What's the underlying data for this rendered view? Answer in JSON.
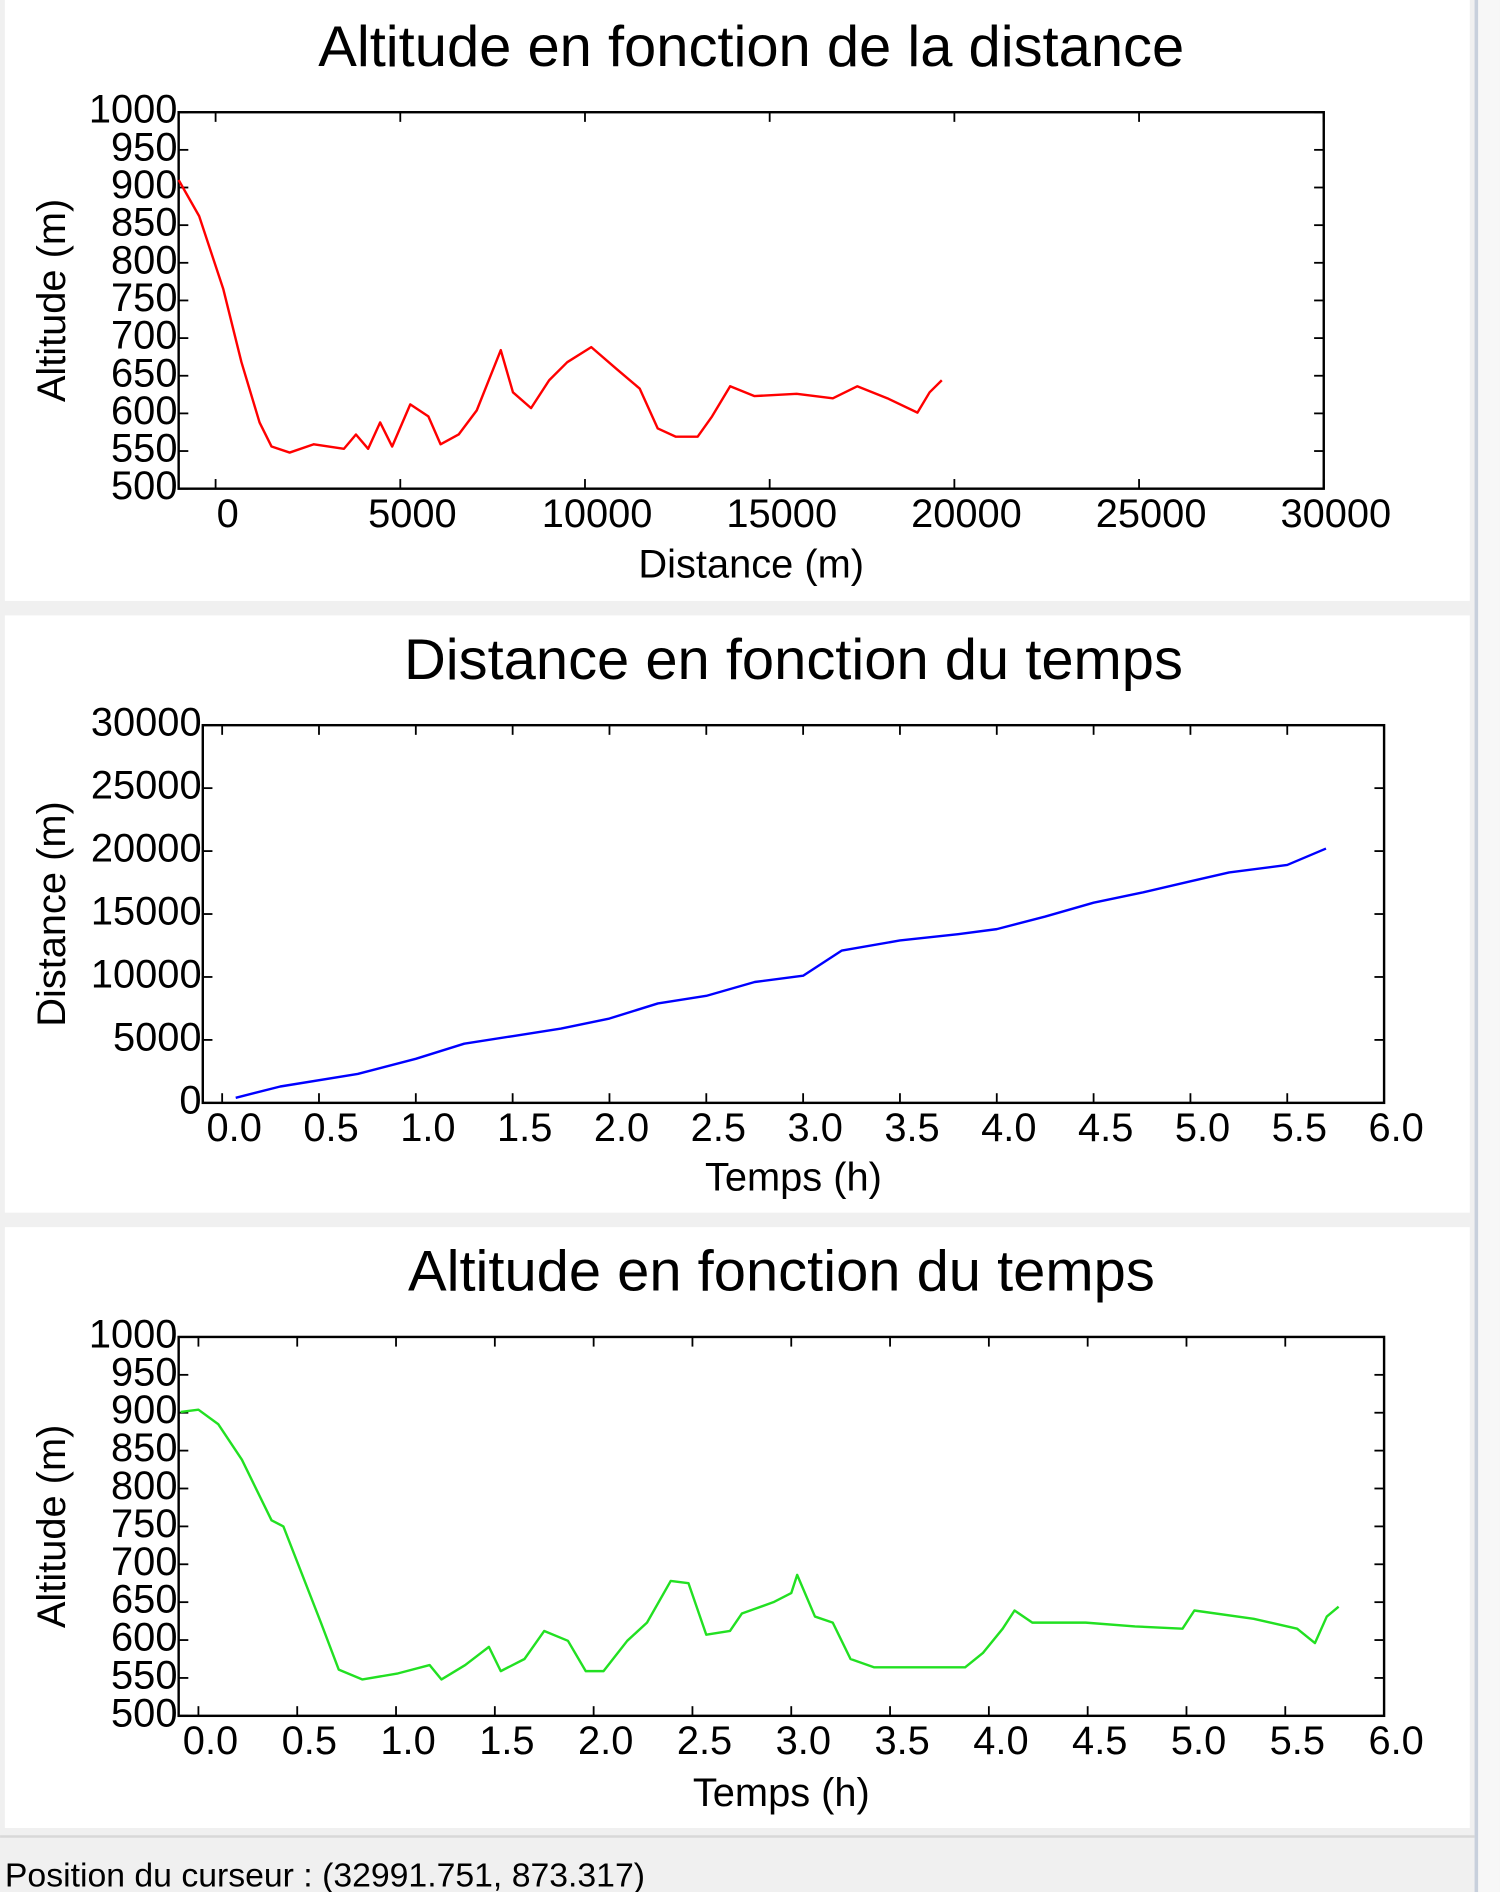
{
  "chart_data": [
    {
      "type": "line",
      "title": "Altitude en fonction de la distance",
      "xlabel": "Distance (m)",
      "ylabel": "Altitude (m)",
      "xlim": [
        -1000,
        30000
      ],
      "ylim": [
        500,
        1000
      ],
      "xticks": [
        0,
        5000,
        10000,
        15000,
        20000,
        25000,
        30000
      ],
      "yticks": [
        500,
        550,
        600,
        650,
        700,
        750,
        800,
        850,
        900,
        950,
        1000
      ],
      "series": [
        {
          "color": "#ff0000",
          "x": [
            -1000,
            -445,
            209,
            700,
            1190,
            1515,
            2005,
            2660,
            3475,
            3800,
            4130,
            4455,
            4780,
            5270,
            5760,
            6090,
            6580,
            7070,
            7720,
            8050,
            8540,
            9030,
            9520,
            10170,
            10830,
            11480,
            11970,
            12460,
            13050,
            13440,
            13930,
            14590,
            15730,
            16710,
            17370,
            18190,
            19000,
            19330,
            19660
          ],
          "values": [
            910,
            862,
            765,
            668,
            588,
            556,
            548,
            559,
            553,
            572,
            553,
            588,
            556,
            612,
            596,
            559,
            572,
            604,
            684,
            628,
            607,
            644,
            668,
            688,
            660,
            633,
            580,
            569,
            569,
            596,
            636,
            623,
            626,
            620,
            636,
            620,
            601,
            628,
            644
          ]
        }
      ]
    },
    {
      "type": "line",
      "title": "Distance en fonction du temps",
      "xlabel": "Temps (h)",
      "ylabel": "Distance (m)",
      "xlim": [
        -0.1,
        6.0
      ],
      "ylim": [
        0,
        30000
      ],
      "xticks": [
        {
          "value": 0,
          "label": "0.0"
        },
        0.5,
        {
          "value": 1,
          "label": "1.0"
        },
        1.5,
        {
          "value": 2,
          "label": "2.0"
        },
        2.5,
        {
          "value": 3,
          "label": "3.0"
        },
        3.5,
        {
          "value": 4,
          "label": "4.0"
        },
        4.5,
        {
          "value": 5,
          "label": "5.0"
        },
        5.5,
        {
          "value": 6,
          "label": "6.0"
        }
      ],
      "yticks": [
        0,
        5000,
        10000,
        15000,
        20000,
        25000,
        30000
      ],
      "series": [
        {
          "color": "#0000ff",
          "x": [
            0.07,
            0.3,
            0.7,
            1.0,
            1.25,
            1.5,
            1.75,
            2.0,
            2.25,
            2.5,
            2.75,
            3.0,
            3.2,
            3.5,
            3.8,
            4.0,
            4.25,
            4.5,
            4.75,
            5.0,
            5.2,
            5.5,
            5.7
          ],
          "values": [
            400,
            1300,
            2300,
            3500,
            4700,
            5300,
            5900,
            6700,
            7900,
            8500,
            9600,
            10100,
            12100,
            12900,
            13400,
            13800,
            14800,
            15900,
            16700,
            17600,
            18300,
            18900,
            20200
          ]
        }
      ]
    },
    {
      "type": "line",
      "title": "Altitude en fonction du temps",
      "xlabel": "Temps (h)",
      "ylabel": "Altitude (m)",
      "xlim": [
        -0.1,
        6.0
      ],
      "ylim": [
        500,
        1000
      ],
      "xticks": [
        {
          "value": 0,
          "label": "0.0"
        },
        0.5,
        {
          "value": 1,
          "label": "1.0"
        },
        1.5,
        {
          "value": 2,
          "label": "2.0"
        },
        2.5,
        {
          "value": 3,
          "label": "3.0"
        },
        3.5,
        {
          "value": 4,
          "label": "4.0"
        },
        4.5,
        {
          "value": 5,
          "label": "5.0"
        },
        5.5,
        {
          "value": 6,
          "label": "6.0"
        }
      ],
      "yticks": [
        500,
        550,
        600,
        650,
        700,
        750,
        800,
        850,
        900,
        950,
        1000
      ],
      "series": [
        {
          "color": "#22e022",
          "x": [
            -0.09,
            0.0,
            0.1,
            0.22,
            0.37,
            0.43,
            0.62,
            0.71,
            0.83,
            1.01,
            1.17,
            1.23,
            1.35,
            1.47,
            1.53,
            1.65,
            1.75,
            1.87,
            1.96,
            2.05,
            2.17,
            2.27,
            2.39,
            2.48,
            2.57,
            2.69,
            2.75,
            2.91,
            3.0,
            3.03,
            3.12,
            3.21,
            3.3,
            3.42,
            3.88,
            3.97,
            4.07,
            4.13,
            4.22,
            4.49,
            4.74,
            4.98,
            5.04,
            5.34,
            5.56,
            5.65,
            5.71,
            5.77
          ],
          "values": [
            901,
            904,
            885,
            838,
            758,
            750,
            623,
            561,
            548,
            556,
            567,
            548,
            567,
            591,
            559,
            575,
            612,
            599,
            559,
            559,
            599,
            623,
            678,
            675,
            607,
            612,
            635,
            650,
            662,
            686,
            631,
            623,
            575,
            564,
            564,
            583,
            615,
            639,
            623,
            623,
            618,
            615,
            639,
            628,
            615,
            596,
            631,
            644
          ]
        }
      ]
    }
  ],
  "status_bar": "Position du curseur : (32991.751, 873.317)"
}
